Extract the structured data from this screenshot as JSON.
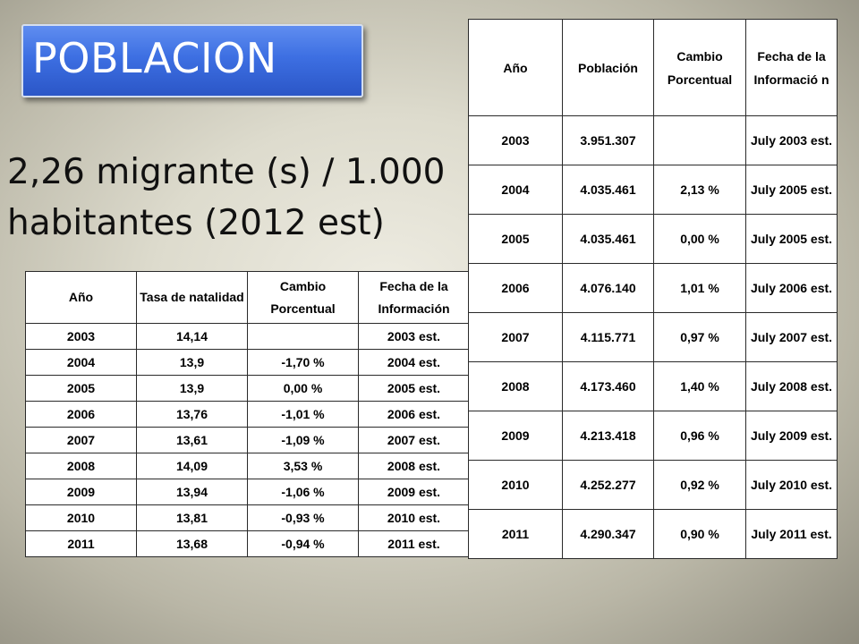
{
  "title": "POBLACION",
  "migration": {
    "line1": "2,26 migrante (s) / 1.000",
    "line2": "habitantes (2012 est)"
  },
  "birth_table": {
    "headers": [
      "Año",
      "Tasa de natalidad",
      "Cambio Porcentual",
      "Fecha de la Información"
    ],
    "rows": [
      [
        "2003",
        "14,14",
        "",
        "2003 est."
      ],
      [
        "2004",
        "13,9",
        "-1,70 %",
        "2004 est."
      ],
      [
        "2005",
        "13,9",
        "0,00 %",
        "2005 est."
      ],
      [
        "2006",
        "13,76",
        "-1,01 %",
        "2006 est."
      ],
      [
        "2007",
        "13,61",
        "-1,09 %",
        "2007 est."
      ],
      [
        "2008",
        "14,09",
        "3,53 %",
        "2008 est."
      ],
      [
        "2009",
        "13,94",
        "-1,06 %",
        "2009 est."
      ],
      [
        "2010",
        "13,81",
        "-0,93 %",
        "2010 est."
      ],
      [
        "2011",
        "13,68",
        "-0,94 %",
        "2011 est."
      ]
    ]
  },
  "population_table": {
    "headers": [
      "Año",
      "Población",
      "Cambio Porcentual",
      "Fecha de la Informació n"
    ],
    "rows": [
      [
        "2003",
        "3.951.307",
        "",
        "July 2003 est."
      ],
      [
        "2004",
        "4.035.461",
        "2,13 %",
        "July 2005 est."
      ],
      [
        "2005",
        "4.035.461",
        "0,00 %",
        "July 2005 est."
      ],
      [
        "2006",
        "4.076.140",
        "1,01 %",
        "July 2006 est."
      ],
      [
        "2007",
        "4.115.771",
        "0,97 %",
        "July 2007 est."
      ],
      [
        "2008",
        "4.173.460",
        "1,40 %",
        "July 2008 est."
      ],
      [
        "2009",
        "4.213.418",
        "0,96 %",
        "July 2009 est."
      ],
      [
        "2010",
        "4.252.277",
        "0,92 %",
        "July 2010 est."
      ],
      [
        "2011",
        "4.290.347",
        "0,90 %",
        "July 2011 est."
      ]
    ]
  }
}
